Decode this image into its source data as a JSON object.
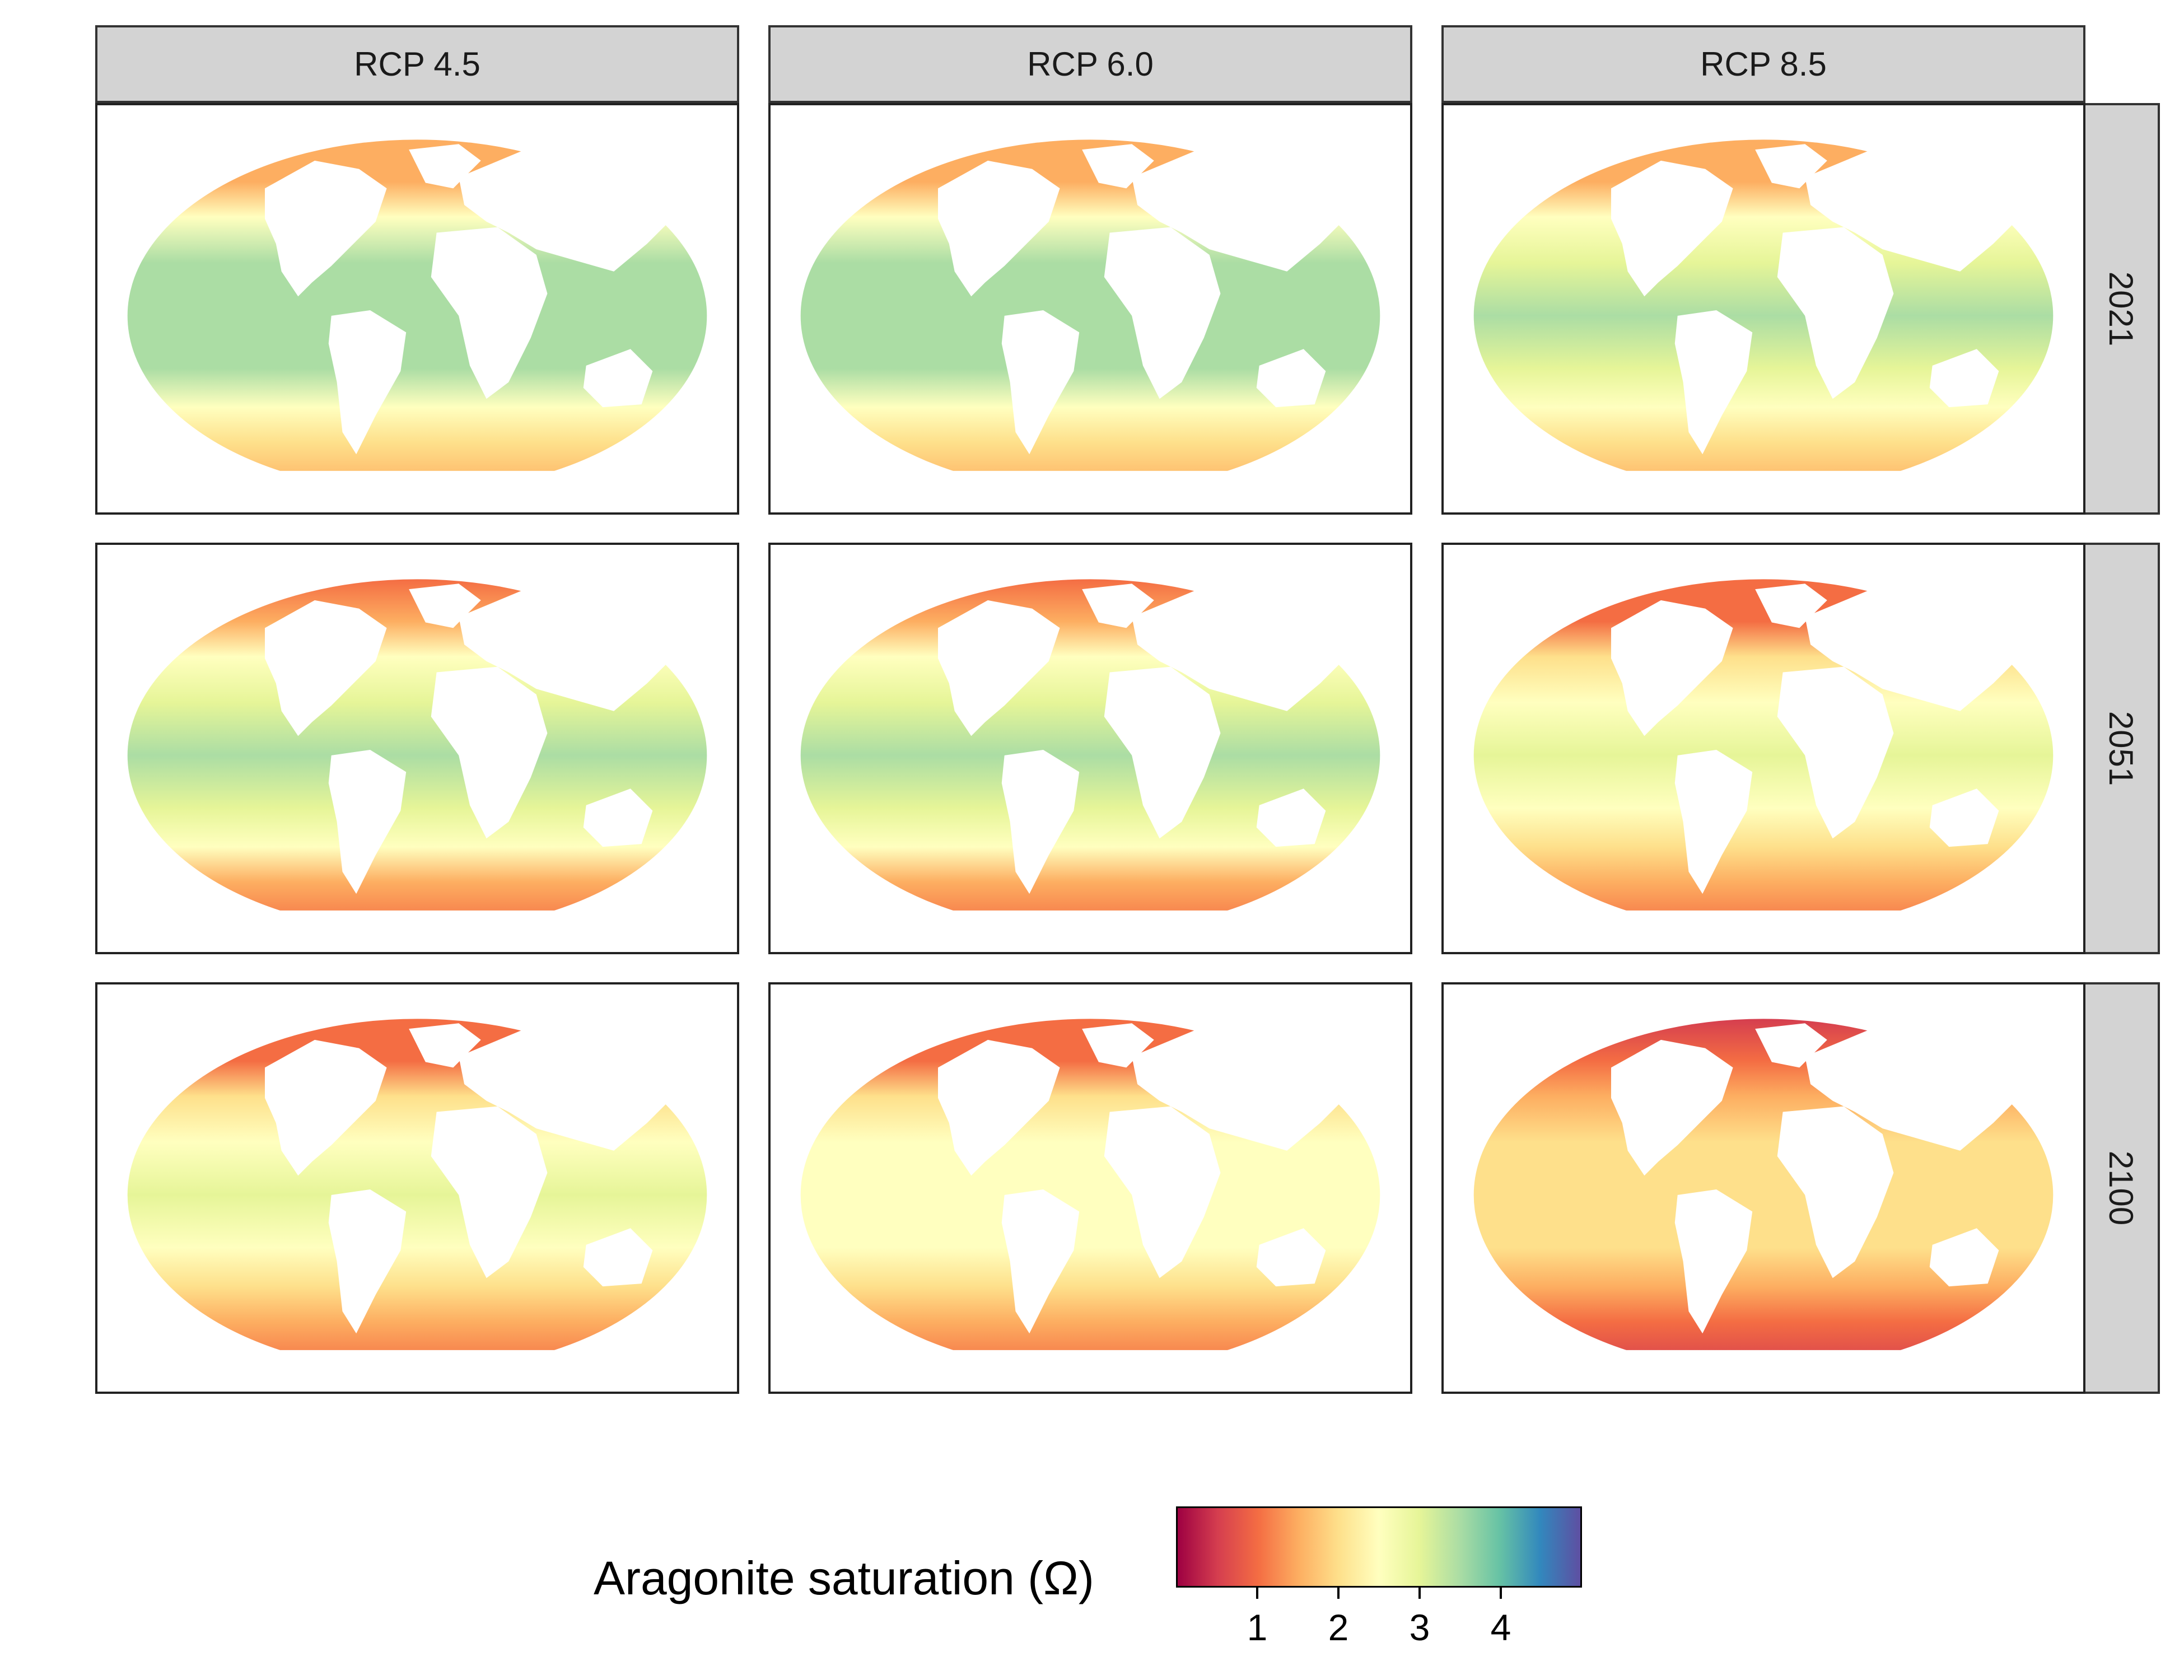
{
  "columns": [
    "RCP 4.5",
    "RCP 6.0",
    "RCP 8.5"
  ],
  "rows": [
    "2021",
    "2051",
    "2100"
  ],
  "map": {
    "projection": "Winkel tripel (elliptical world map)",
    "variable": "Aragonite saturation",
    "land_color": "#ffffff"
  },
  "legend": {
    "title": "Aragonite saturation (Ω)",
    "ticks": [
      "1",
      "2",
      "3",
      "4"
    ],
    "tick_values": [
      1,
      2,
      3,
      4
    ],
    "range": [
      0,
      5
    ],
    "colors": [
      "#9e0142",
      "#d53e4f",
      "#f46d43",
      "#fdae61",
      "#fee08b",
      "#ffffbf",
      "#e6f598",
      "#abdda4",
      "#66c2a5",
      "#3288bd",
      "#5e4fa2"
    ]
  },
  "panels": [
    {
      "scenario": "RCP 4.5",
      "year": "2021",
      "equator_omega": 3.6,
      "polar_omega": 1.4
    },
    {
      "scenario": "RCP 6.0",
      "year": "2021",
      "equator_omega": 3.6,
      "polar_omega": 1.4
    },
    {
      "scenario": "RCP 8.5",
      "year": "2021",
      "equator_omega": 3.5,
      "polar_omega": 1.4
    },
    {
      "scenario": "RCP 4.5",
      "year": "2051",
      "equator_omega": 3.3,
      "polar_omega": 1.2
    },
    {
      "scenario": "RCP 6.0",
      "year": "2051",
      "equator_omega": 3.3,
      "polar_omega": 1.2
    },
    {
      "scenario": "RCP 8.5",
      "year": "2051",
      "equator_omega": 3.0,
      "polar_omega": 1.0
    },
    {
      "scenario": "RCP 4.5",
      "year": "2100",
      "equator_omega": 3.0,
      "polar_omega": 1.0
    },
    {
      "scenario": "RCP 6.0",
      "year": "2100",
      "equator_omega": 2.6,
      "polar_omega": 0.9
    },
    {
      "scenario": "RCP 8.5",
      "year": "2100",
      "equator_omega": 2.1,
      "polar_omega": 0.7
    }
  ]
}
